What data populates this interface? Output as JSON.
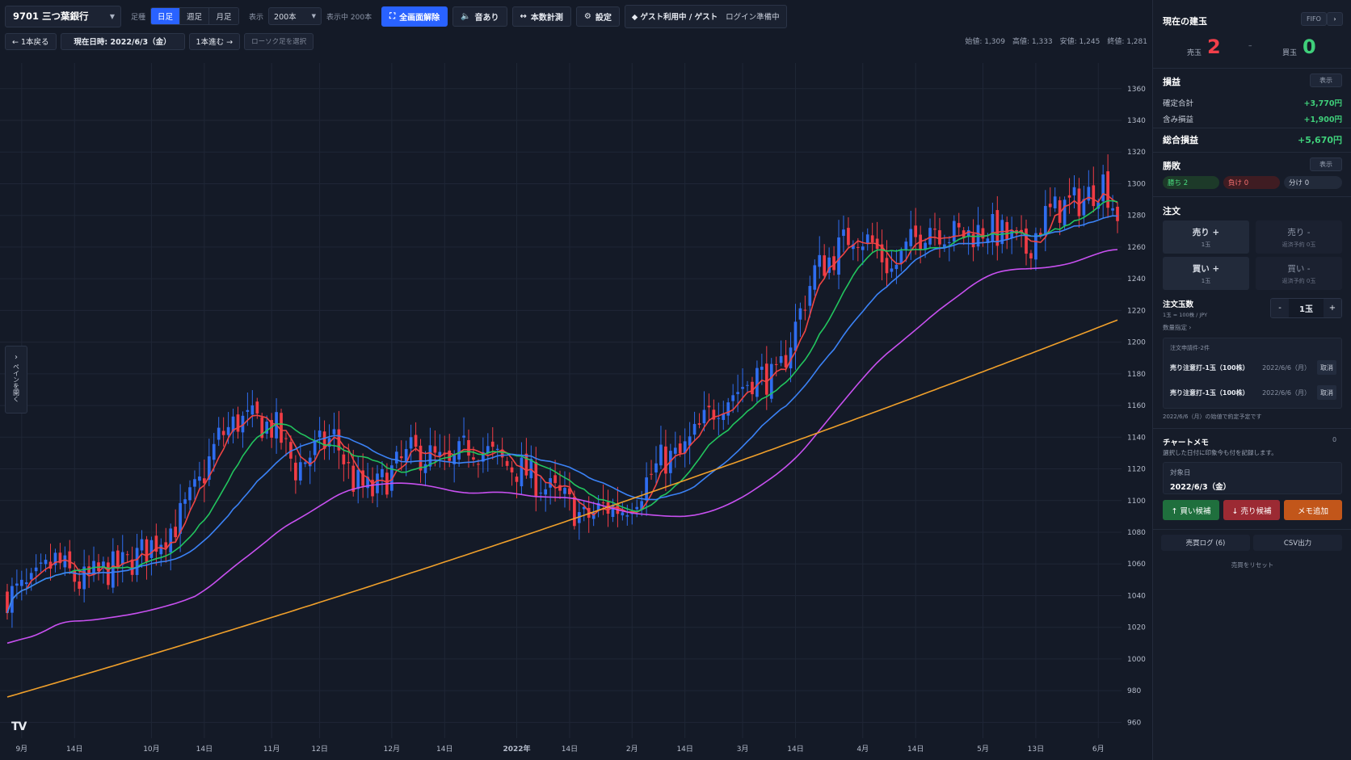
{
  "toolbar": {
    "symbol": "9701 三つ葉銀行",
    "timeframe_label": "足種",
    "timeframes": [
      "日足",
      "週足",
      "月足"
    ],
    "active_timeframe": "日足",
    "display_label": "表示",
    "display_count": "200本",
    "display_status": "表示中 200本",
    "fullscreen_button": "全画面解除",
    "sound_button": "音あり",
    "measure_button": "本数計測",
    "settings_button": "設定",
    "guest_status": "ゲスト利用中 / ゲスト",
    "login_status": "ログイン準備中"
  },
  "toolbar2": {
    "back_button": "← 1本戻る",
    "current_date": "現在日時: 2022/6/3（金）",
    "forward_button": "1本進む →",
    "select_candle": "ローソク足を選択"
  },
  "ohlc": {
    "open": "始値: 1,309",
    "high": "高値: 1,333",
    "low": "安値: 1,245",
    "close": "終値: 1,281"
  },
  "side_tab": {
    "label": "ペインを開く"
  },
  "chart_data": {
    "type": "candlestick",
    "y_ticks": [
      960,
      980,
      1000,
      1020,
      1040,
      1060,
      1080,
      1100,
      1120,
      1140,
      1160,
      1180,
      1200,
      1220,
      1240,
      1260,
      1280,
      1300,
      1320,
      1340,
      1360
    ],
    "ylim": [
      950,
      1366
    ],
    "x_ticks": [
      "9月",
      "14日",
      "10月",
      "14日",
      "11月",
      "12日",
      "12月",
      "14日",
      "2022年",
      "14日",
      "2月",
      "14日",
      "3月",
      "14日",
      "4月",
      "14日",
      "5月",
      "13日",
      "6月"
    ],
    "x_tick_bar_index": [
      3,
      14,
      30,
      41,
      55,
      65,
      80,
      91,
      106,
      117,
      130,
      141,
      153,
      164,
      178,
      189,
      203,
      214,
      227
    ],
    "bar_count": 232,
    "close_anchors": [
      [
        0,
        1040
      ],
      [
        5,
        1045
      ],
      [
        10,
        1062
      ],
      [
        15,
        1048
      ],
      [
        20,
        1055
      ],
      [
        25,
        1060
      ],
      [
        30,
        1072
      ],
      [
        35,
        1085
      ],
      [
        40,
        1110
      ],
      [
        44,
        1140
      ],
      [
        48,
        1150
      ],
      [
        52,
        1150
      ],
      [
        56,
        1145
      ],
      [
        60,
        1120
      ],
      [
        64,
        1132
      ],
      [
        68,
        1140
      ],
      [
        72,
        1112
      ],
      [
        76,
        1105
      ],
      [
        80,
        1118
      ],
      [
        84,
        1130
      ],
      [
        88,
        1128
      ],
      [
        92,
        1120
      ],
      [
        96,
        1135
      ],
      [
        100,
        1130
      ],
      [
        104,
        1122
      ],
      [
        108,
        1118
      ],
      [
        112,
        1108
      ],
      [
        116,
        1100
      ],
      [
        120,
        1088
      ],
      [
        124,
        1096
      ],
      [
        128,
        1095
      ],
      [
        132,
        1108
      ],
      [
        136,
        1125
      ],
      [
        140,
        1128
      ],
      [
        144,
        1145
      ],
      [
        148,
        1162
      ],
      [
        152,
        1170
      ],
      [
        156,
        1180
      ],
      [
        160,
        1175
      ],
      [
        164,
        1210
      ],
      [
        168,
        1245
      ],
      [
        172,
        1255
      ],
      [
        176,
        1270
      ],
      [
        180,
        1262
      ],
      [
        184,
        1245
      ],
      [
        188,
        1262
      ],
      [
        192,
        1275
      ],
      [
        196,
        1268
      ],
      [
        200,
        1268
      ],
      [
        204,
        1272
      ],
      [
        208,
        1266
      ],
      [
        212,
        1258
      ],
      [
        216,
        1280
      ],
      [
        220,
        1286
      ],
      [
        224,
        1290
      ],
      [
        228,
        1302
      ],
      [
        231,
        1281
      ]
    ],
    "ma_lines": [
      {
        "name": "MA5",
        "color": "#ef4444"
      },
      {
        "name": "MA25",
        "color": "#22c55e"
      },
      {
        "name": "MA50",
        "color": "#3b82f6"
      },
      {
        "name": "MA100",
        "color": "#c850f0"
      },
      {
        "name": "MA200",
        "color": "#f0a02b",
        "start": 976,
        "end": 1214
      }
    ],
    "up_color": "#2f6df0",
    "down_color": "#f03c45"
  },
  "panel": {
    "position": {
      "title": "現在の建玉",
      "method": "FIFO",
      "next": "›",
      "sell_label": "売玉",
      "sell_count": "2",
      "sep": "–",
      "buy_label": "買玉",
      "buy_count": "0"
    },
    "pnl": {
      "title": "損益",
      "toggle": "表示",
      "realized_label": "確定合計",
      "realized_value": "+3,770円",
      "unrealized_label": "含み損益",
      "unrealized_value": "+1,900円",
      "total_label": "総合損益",
      "total_value": "+5,670円"
    },
    "record": {
      "title": "勝敗",
      "toggle": "表示",
      "wins": "勝ち 2",
      "losses": "負け 0",
      "draws": "分け 0"
    },
    "order": {
      "title": "注文",
      "sell_open": "売り +",
      "sell_open_sub": "1玉",
      "sell_close": "売り -",
      "sell_close_sub": "返済予約 0玉",
      "buy_open": "買い +",
      "buy_open_sub": "1玉",
      "buy_close": "買い -",
      "buy_close_sub": "返済予約 0玉",
      "qty_label": "注文玉数",
      "qty_sub": "1玉 = 100株 / JPY",
      "qty_minus": "-",
      "qty_value": "1玉",
      "qty_plus": "+",
      "qty_detail": "数量指定 ›",
      "pending_title": "注文申請件-2件",
      "pending": [
        {
          "text": "売り注意打-1玉（100株）",
          "date": "2022/6/6（月）",
          "cancel": "取消"
        },
        {
          "text": "売り注意打-1玉（100株）",
          "date": "2022/6/6（月）",
          "cancel": "取消"
        }
      ],
      "pending_note": "2022/6/6（月）の始値で約定予定です"
    },
    "memo": {
      "title": "チャートメモ",
      "count": "0",
      "desc": "選択した日付に印象今も付を記録します。",
      "date_label": "対象日",
      "date_value": "2022/6/3（金）",
      "buy_candidate": "↑ 買い候補",
      "sell_candidate": "↓ 売り候補",
      "add_memo": "メモ追加"
    },
    "bottom": {
      "log_button": "売買ログ (6)",
      "csv_button": "CSV出力",
      "reset_link": "売買をリセット"
    }
  }
}
